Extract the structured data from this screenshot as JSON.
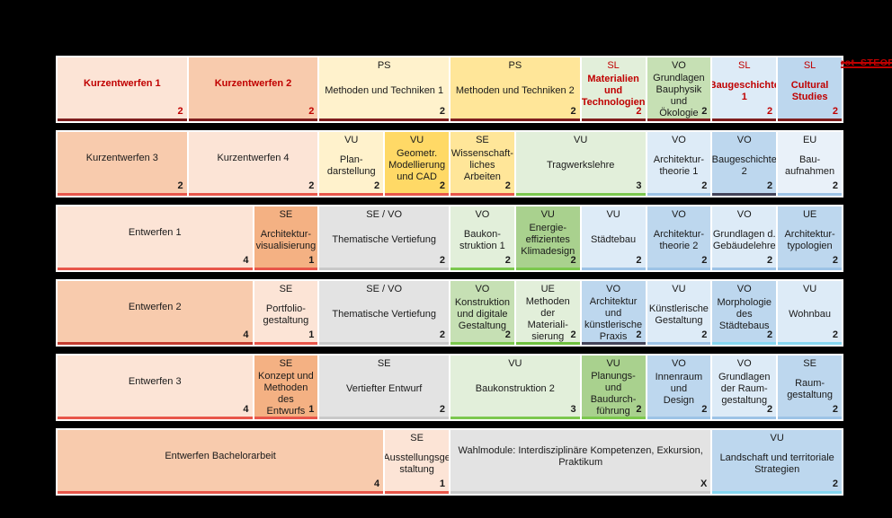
{
  "annotation": {
    "text": "rot_STEOP",
    "color": "#C00000"
  },
  "rows": [
    {
      "cells": [
        {
          "name": "Kurzentwerfen 1",
          "type": "",
          "ects": "2",
          "span": 2,
          "bg": "#FCE4D6",
          "red": true,
          "edge": "#7F1D1D"
        },
        {
          "name": "Kurzentwerfen 2",
          "type": "",
          "ects": "2",
          "span": 2,
          "bg": "#F8CBAD",
          "red": true,
          "edge": "#7F1D1D"
        },
        {
          "name": "Methoden und Techniken 1",
          "type": "PS",
          "ects": "2",
          "span": 2,
          "bg": "#FFF2CC",
          "red": false,
          "edge": "#7F1D1D"
        },
        {
          "name": "Methoden und Techniken 2",
          "type": "PS",
          "ects": "2",
          "span": 2,
          "bg": "#FFE699",
          "red": false,
          "edge": "#7F1D1D"
        },
        {
          "name": "Materialien und\nTechnologien",
          "type": "SL",
          "ects": "2",
          "span": 1,
          "bg": "#E2EFDA",
          "red": true,
          "edge": "#7F1D1D"
        },
        {
          "name": "Grundlagen\nBauphysik und\nÖkologie",
          "type": "VO",
          "ects": "2",
          "span": 1,
          "bg": "#C6E0B4",
          "red": false,
          "edge": "#7F1D1D"
        },
        {
          "name": "Baugeschichte\n1",
          "type": "SL",
          "ects": "2",
          "span": 1,
          "bg": "#DDEBF7",
          "red": true,
          "edge": "#7F1D1D"
        },
        {
          "name": "Cultural\nStudies",
          "type": "SL",
          "ects": "2",
          "span": 1,
          "bg": "#BDD7EE",
          "red": true,
          "edge": "#7F1D1D"
        }
      ]
    },
    {
      "cells": [
        {
          "name": "Kurzentwerfen 3",
          "type": "",
          "ects": "2",
          "span": 2,
          "bg": "#F8CBAD",
          "red": false,
          "edge": "#E8564A"
        },
        {
          "name": "Kurzentwerfen 4",
          "type": "",
          "ects": "2",
          "span": 2,
          "bg": "#FCE4D6",
          "red": false,
          "edge": "#E8564A"
        },
        {
          "name": "Plan-\ndarstellung",
          "type": "VU",
          "ects": "2",
          "span": 1,
          "bg": "#FFF2CC",
          "red": false,
          "edge": "#E8564A"
        },
        {
          "name": "Geometr.\nModellierung\nund CAD",
          "type": "VU",
          "ects": "2",
          "span": 1,
          "bg": "#FFD966",
          "red": false,
          "edge": "#E8564A"
        },
        {
          "name": "Wissenschaft-\nliches Arbeiten",
          "type": "SE",
          "ects": "2",
          "span": 1,
          "bg": "#FFE699",
          "red": false,
          "edge": "#E8564A"
        },
        {
          "name": "Tragwerkslehre",
          "type": "VU",
          "ects": "3",
          "span": 2,
          "bg": "#E2EFDA",
          "red": false,
          "edge": "#7CC84E"
        },
        {
          "name": "Architektur-\ntheorie 1",
          "type": "VO",
          "ects": "2",
          "span": 1,
          "bg": "#DDEBF7",
          "red": false,
          "edge": "#9DC3E6"
        },
        {
          "name": "Baugeschichte\n2",
          "type": "VO",
          "ects": "2",
          "span": 1,
          "bg": "#BDD7EE",
          "red": false,
          "edge": "#44445A"
        },
        {
          "name": "Bau-\naufnahmen",
          "type": "EU",
          "ects": "2",
          "span": 1,
          "bg": "#E9F1F9",
          "red": false,
          "edge": "#9DC3E6"
        }
      ]
    },
    {
      "cells": [
        {
          "name": "Entwerfen 1",
          "type": "",
          "ects": "4",
          "span": 3,
          "bg": "#FCE4D6",
          "red": false,
          "edge": "#E8564A"
        },
        {
          "name": "Architektur-\nvisualisierung",
          "type": "SE",
          "ects": "1",
          "span": 1,
          "bg": "#F4B183",
          "red": false,
          "edge": "#E8564A"
        },
        {
          "name": "Thematische Vertiefung",
          "type": "SE / VO",
          "ects": "2",
          "span": 2,
          "bg": "#E3E3E3",
          "red": false,
          "edge": "#C9C9C9"
        },
        {
          "name": "Baukon-\nstruktion 1",
          "type": "VO",
          "ects": "2",
          "span": 1,
          "bg": "#E2EFDA",
          "red": false,
          "edge": "#7CC84E"
        },
        {
          "name": "Energie-\neffizientes\nKlimadesign",
          "type": "VU",
          "ects": "2",
          "span": 1,
          "bg": "#A9D18E",
          "red": false,
          "edge": "#7CC84E"
        },
        {
          "name": "Städtebau",
          "type": "VU",
          "ects": "2",
          "span": 1,
          "bg": "#DDEBF7",
          "red": false,
          "edge": "#9DC3E6"
        },
        {
          "name": "Architektur-\ntheorie 2",
          "type": "VO",
          "ects": "2",
          "span": 1,
          "bg": "#BDD7EE",
          "red": false,
          "edge": "#9DC3E6"
        },
        {
          "name": "Grundlagen d.\nGebäudelehre",
          "type": "VO",
          "ects": "2",
          "span": 1,
          "bg": "#DDEBF7",
          "red": false,
          "edge": "#9DC3E6"
        },
        {
          "name": "Architektur-\ntypologien",
          "type": "UE",
          "ects": "2",
          "span": 1,
          "bg": "#BDD7EE",
          "red": false,
          "edge": "#9DC3E6"
        }
      ]
    },
    {
      "cells": [
        {
          "name": "Entwerfen 2",
          "type": "",
          "ects": "4",
          "span": 3,
          "bg": "#F8CBAD",
          "red": false,
          "edge": "#C23B2E"
        },
        {
          "name": "Portfolio-\ngestaltung",
          "type": "SE",
          "ects": "1",
          "span": 1,
          "bg": "#FCE4D6",
          "red": false,
          "edge": "#E8564A"
        },
        {
          "name": "Thematische Vertiefung",
          "type": "SE / VO",
          "ects": "2",
          "span": 2,
          "bg": "#E3E3E3",
          "red": false,
          "edge": "#C9C9C9"
        },
        {
          "name": "Konstruktion\nund digitale\nGestaltung",
          "type": "VO",
          "ects": "2",
          "span": 1,
          "bg": "#C6E0B4",
          "red": false,
          "edge": "#7CC84E"
        },
        {
          "name": "Methoden der\nMateriali-\nsierung",
          "type": "UE",
          "ects": "2",
          "span": 1,
          "bg": "#E2EFDA",
          "red": false,
          "edge": "#6FC13E"
        },
        {
          "name": "Architektur und\nkünstlerische\nPraxis",
          "type": "VO",
          "ects": "2",
          "span": 1,
          "bg": "#BDD7EE",
          "red": false,
          "edge": "#44445A"
        },
        {
          "name": "Künstlerische\nGestaltung",
          "type": "VU",
          "ects": "2",
          "span": 1,
          "bg": "#DDEBF7",
          "red": false,
          "edge": "#9DC3E6"
        },
        {
          "name": "Morphologie\ndes Städtebaus",
          "type": "VO",
          "ects": "2",
          "span": 1,
          "bg": "#BDD7EE",
          "red": false,
          "edge": "#86D6F0"
        },
        {
          "name": "Wohnbau",
          "type": "VU",
          "ects": "2",
          "span": 1,
          "bg": "#DDEBF7",
          "red": false,
          "edge": "#86D6F0"
        }
      ]
    },
    {
      "cells": [
        {
          "name": "Entwerfen 3",
          "type": "",
          "ects": "4",
          "span": 3,
          "bg": "#FCE4D6",
          "red": false,
          "edge": "#E8564A"
        },
        {
          "name": "Konzept und\nMethoden des\nEntwurfs",
          "type": "SE",
          "ects": "1",
          "span": 1,
          "bg": "#F4B183",
          "red": false,
          "edge": "#E8564A"
        },
        {
          "name": "Vertiefter Entwurf",
          "type": "SE",
          "ects": "2",
          "span": 2,
          "bg": "#E3E3E3",
          "red": false,
          "edge": "#C9C9C9"
        },
        {
          "name": "Baukonstruktion 2",
          "type": "VU",
          "ects": "3",
          "span": 2,
          "bg": "#E2EFDA",
          "red": false,
          "edge": "#7CC84E"
        },
        {
          "name": "Planungs- und\nBaudurch-\nführung",
          "type": "VU",
          "ects": "2",
          "span": 1,
          "bg": "#A9D18E",
          "red": false,
          "edge": "#7CC84E"
        },
        {
          "name": "Innenraum und\nDesign",
          "type": "VO",
          "ects": "2",
          "span": 1,
          "bg": "#BDD7EE",
          "red": false,
          "edge": "#9DC3E6"
        },
        {
          "name": "Grundlagen\nder Raum-\ngestaltung",
          "type": "VO",
          "ects": "2",
          "span": 1,
          "bg": "#DDEBF7",
          "red": false,
          "edge": "#9DC3E6"
        },
        {
          "name": "Raum-\ngestaltung",
          "type": "SE",
          "ects": "2",
          "span": 1,
          "bg": "#BDD7EE",
          "red": false,
          "edge": "#9DC3E6"
        }
      ]
    },
    {
      "cells": [
        {
          "name": "Entwerfen Bachelorarbeit",
          "type": "",
          "ects": "4",
          "span": 5,
          "bg": "#F8CBAD",
          "red": false,
          "edge": "#E8564A"
        },
        {
          "name": "Ausstellungsge\nstaltung",
          "type": "SE",
          "ects": "1",
          "span": 1,
          "bg": "#FCE4D6",
          "red": false,
          "edge": "#E8564A"
        },
        {
          "name": "Wahlmodule: Interdisziplinäre Kompetenzen, Exkursion, Praktikum",
          "type": "",
          "ects": "X",
          "span": 4,
          "bg": "#E3E3E3",
          "red": false,
          "edge": "#C9C9C9"
        },
        {
          "name": "Landschaft und territoriale\nStrategien",
          "type": "VU",
          "ects": "2",
          "span": 2,
          "bg": "#BDD7EE",
          "red": false,
          "edge": "#86D6F0"
        }
      ]
    }
  ]
}
